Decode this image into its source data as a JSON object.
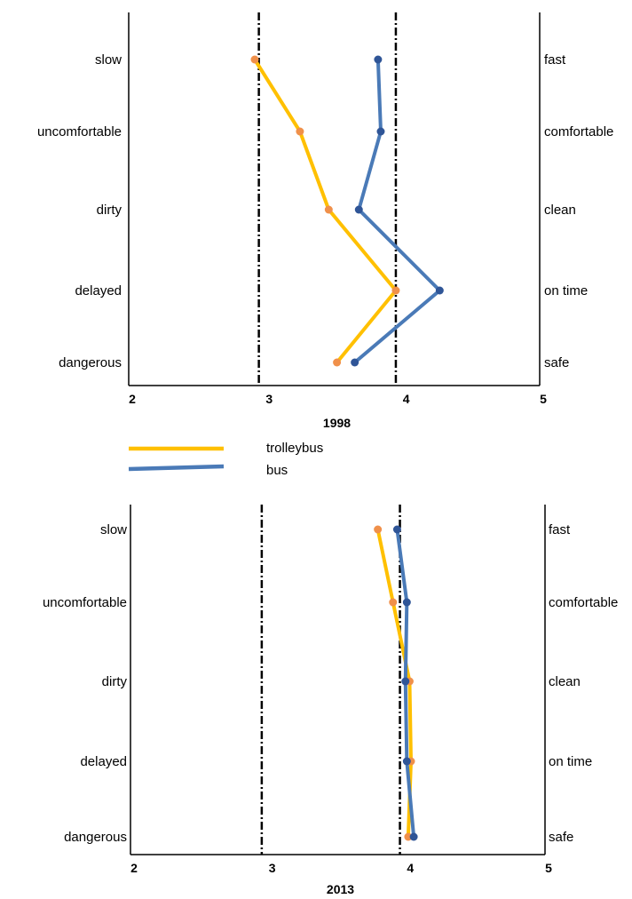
{
  "legend": {
    "entries": [
      {
        "name": "trolleybus",
        "color": "#ffc000"
      },
      {
        "name": "bus",
        "color": "#4a7ab7"
      }
    ]
  },
  "chart_data": [
    {
      "type": "line",
      "title": "1998",
      "orientation": "horizontal-values",
      "xlim": [
        2,
        5
      ],
      "x_ticks": [
        "2",
        "3",
        "4",
        "5"
      ],
      "reference_lines": [
        2.95,
        3.95
      ],
      "left_labels": [
        "slow",
        "uncomfortable",
        "dirty",
        "delayed",
        "dangerous"
      ],
      "right_labels": [
        "fast",
        "comfortable",
        "clean",
        "on time",
        "safe"
      ],
      "series": [
        {
          "name": "trolleybus",
          "color": "#ffc000",
          "marker_color": "#f0904a",
          "values": [
            2.92,
            3.25,
            3.46,
            3.95,
            3.52
          ]
        },
        {
          "name": "bus",
          "color": "#4a7ab7",
          "marker_color": "#2f5597",
          "values": [
            3.82,
            3.84,
            3.68,
            4.27,
            3.65
          ]
        }
      ]
    },
    {
      "type": "line",
      "title": "2013",
      "orientation": "horizontal-values",
      "xlim": [
        2,
        5
      ],
      "x_ticks": [
        "2",
        "3",
        "4",
        "5"
      ],
      "reference_lines": [
        2.95,
        3.95
      ],
      "left_labels": [
        "slow",
        "uncomfortable",
        "dirty",
        "delayed",
        "dangerous"
      ],
      "right_labels": [
        "fast",
        "comfortable",
        "clean",
        "on time",
        "safe"
      ],
      "series": [
        {
          "name": "trolleybus",
          "color": "#ffc000",
          "marker_color": "#f0904a",
          "values": [
            3.79,
            3.9,
            4.02,
            4.03,
            4.01
          ]
        },
        {
          "name": "bus",
          "color": "#4a7ab7",
          "marker_color": "#2f5597",
          "values": [
            3.93,
            4.0,
            3.99,
            4.0,
            4.05
          ]
        }
      ]
    }
  ]
}
